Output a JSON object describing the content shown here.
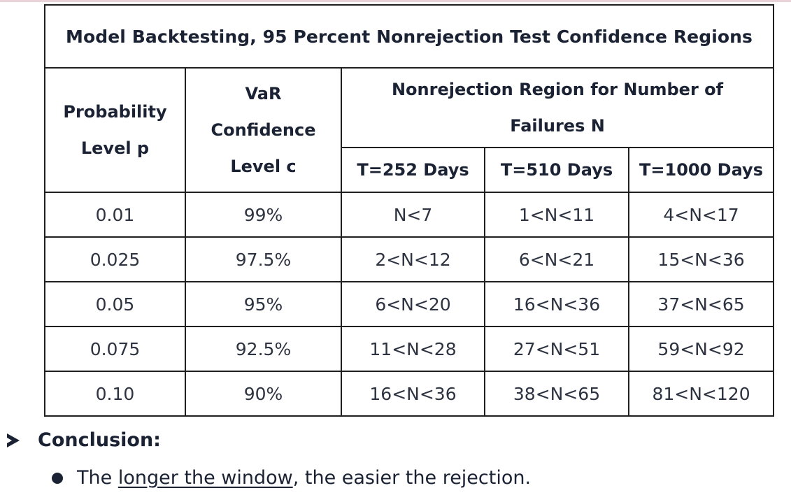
{
  "table": {
    "title": "Model Backtesting, 95 Percent Nonrejection Test  Confidence Regions",
    "headers": {
      "prob_line1": "Probability",
      "prob_line2": "Level p",
      "var_line1": "VaR",
      "var_line2": "Confidence",
      "var_line3": "Level c",
      "region_line1": "Nonrejection Region for Number of",
      "region_line2": "Failures N",
      "t252": "T=252 Days",
      "t510": "T=510 Days",
      "t1000": "T=1000 Days"
    },
    "rows": [
      [
        "0.01",
        "99%",
        "N<7",
        "1<N<11",
        "4<N<17"
      ],
      [
        "0.025",
        "97.5%",
        "2<N<12",
        "6<N<21",
        "15<N<36"
      ],
      [
        "0.05",
        "95%",
        "6<N<20",
        "16<N<36",
        "37<N<65"
      ],
      [
        "0.075",
        "92.5%",
        "11<N<28",
        "27<N<51",
        "59<N<92"
      ],
      [
        "0.10",
        "90%",
        "16<N<36",
        "38<N<65",
        "81<N<120"
      ]
    ]
  },
  "conclusion": {
    "heading": "Conclusion:",
    "bullet_prefix": "The ",
    "bullet_underlined": "longer the window",
    "bullet_suffix": ", the easier the rejection."
  },
  "icons": {
    "arrow": "arrow-bullet-icon",
    "dot": "round-bullet-icon"
  }
}
